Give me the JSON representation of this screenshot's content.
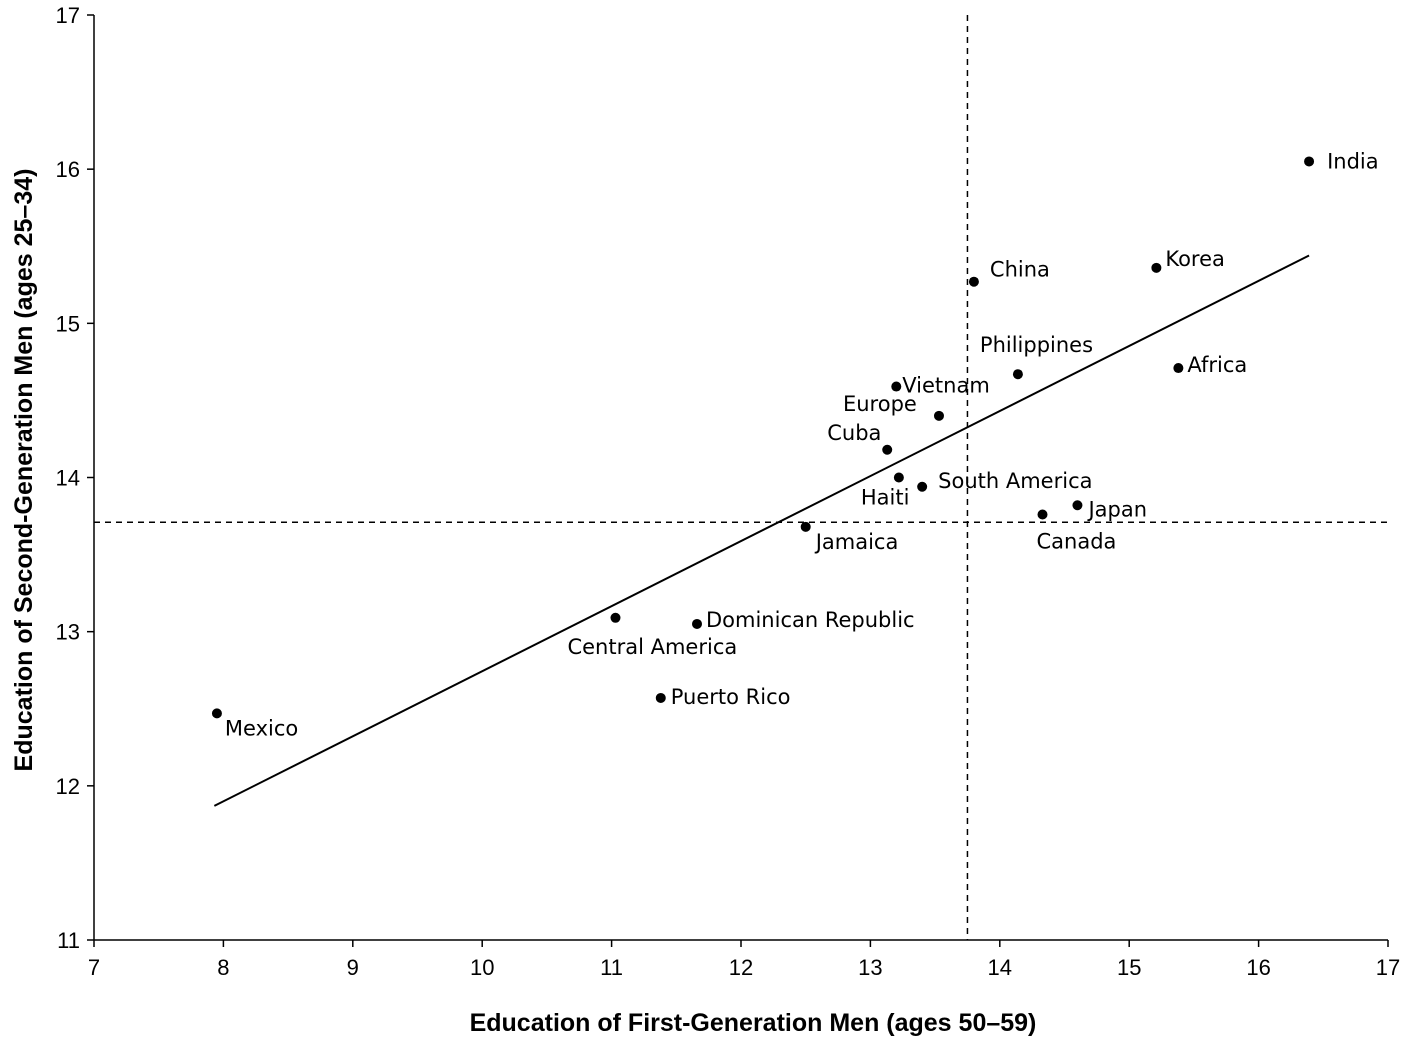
{
  "chart_data": {
    "type": "scatter",
    "title": "",
    "xlabel": "Education of First-Generation  Men (ages  50–59)",
    "ylabel": "Education of Second-Generation  Men (ages 25–34)",
    "xlim": [
      7,
      17
    ],
    "ylim": [
      11,
      17
    ],
    "xticks": [
      "7",
      "8",
      "9",
      "10",
      "11",
      "12",
      "13",
      "14",
      "15",
      "16",
      "17"
    ],
    "yticks": [
      "11",
      "12",
      "13",
      "14",
      "15",
      "16",
      "17"
    ],
    "grid": false,
    "legend": "none",
    "points": [
      {
        "label": "Mexico",
        "x": 7.95,
        "y": 12.47
      },
      {
        "label": "Central America",
        "x": 11.03,
        "y": 13.09
      },
      {
        "label": "Dominican Republic",
        "x": 11.66,
        "y": 13.05
      },
      {
        "label": "Puerto Rico",
        "x": 11.38,
        "y": 12.57
      },
      {
        "label": "Jamaica",
        "x": 12.5,
        "y": 13.68
      },
      {
        "label": "Cuba",
        "x": 13.13,
        "y": 14.18
      },
      {
        "label": "Haiti",
        "x": 13.22,
        "y": 14.0
      },
      {
        "label": "South America",
        "x": 13.4,
        "y": 13.94
      },
      {
        "label": "Vietnam",
        "x": 13.2,
        "y": 14.59
      },
      {
        "label": "Europe",
        "x": 13.53,
        "y": 14.4
      },
      {
        "label": "China",
        "x": 13.8,
        "y": 15.27
      },
      {
        "label": "Philippines",
        "x": 14.14,
        "y": 14.67
      },
      {
        "label": "Canada",
        "x": 14.33,
        "y": 13.76
      },
      {
        "label": "Japan",
        "x": 14.6,
        "y": 13.82
      },
      {
        "label": "Korea",
        "x": 15.21,
        "y": 15.36
      },
      {
        "label": "Africa",
        "x": 15.38,
        "y": 14.71
      },
      {
        "label": "India",
        "x": 16.39,
        "y": 16.05
      }
    ],
    "fit_line": {
      "x": [
        7.93,
        16.39
      ],
      "y": [
        11.87,
        15.44
      ],
      "style": "solid"
    },
    "reference_lines": {
      "vertical_x": 13.75,
      "horizontal_y": 13.71,
      "style": "dashed"
    }
  }
}
